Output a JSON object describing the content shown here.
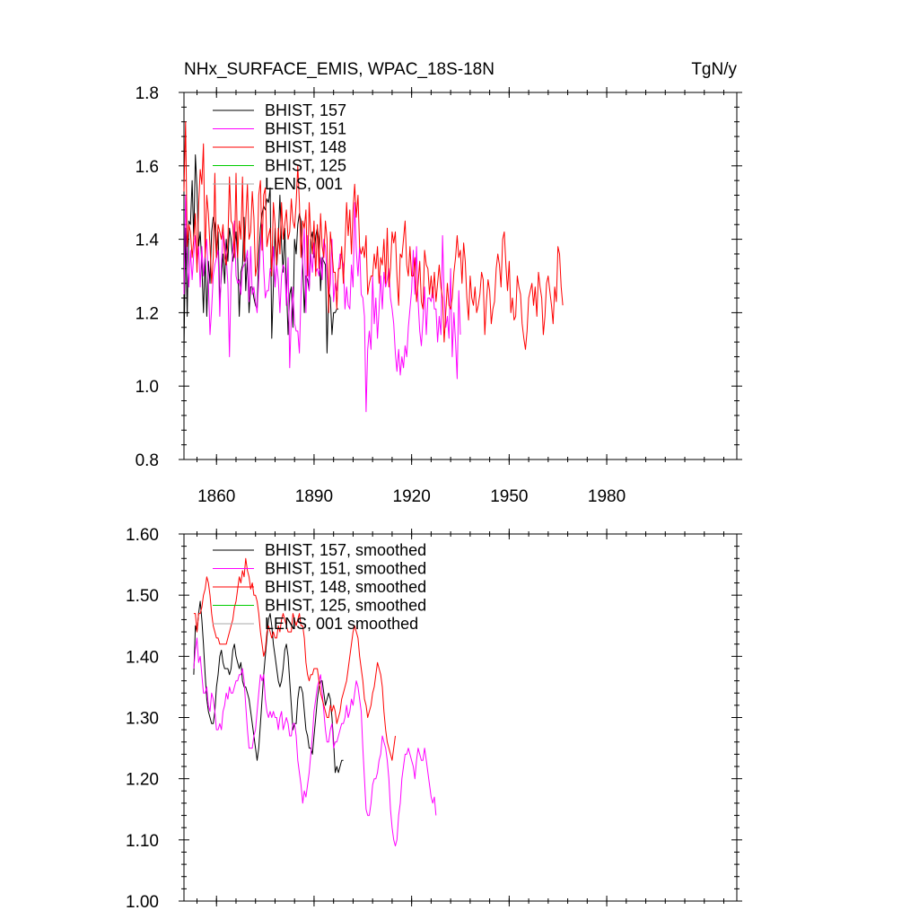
{
  "chart_data": [
    {
      "type": "line",
      "title": "NHx_SURFACE_EMIS, WPAC_18S-18N",
      "units": "TgN/y",
      "xlim": [
        1850,
        2020
      ],
      "ylim": [
        0.8,
        1.8
      ],
      "yticks": [
        "0.8",
        "1.0",
        "1.2",
        "1.4",
        "1.6",
        "1.8"
      ],
      "xticks": [
        "1860",
        "1890",
        "1920",
        "1950",
        "1980"
      ],
      "grid": false,
      "legend": "top-left",
      "series": [
        {
          "name": "BHIST, 157",
          "color": "#000000",
          "x0": 1850,
          "values": [
            1.09,
            1.43,
            1.19,
            1.45,
            1.44,
            1.56,
            1.4,
            1.63,
            1.54,
            1.38,
            1.42,
            1.33,
            1.2,
            1.35,
            1.19,
            1.34,
            1.28,
            1.42,
            1.46,
            1.44,
            1.35,
            1.42,
            1.23,
            1.3,
            1.36,
            1.28,
            1.4,
            1.34,
            1.43,
            1.4,
            1.34,
            1.37,
            1.42,
            1.35,
            1.19,
            1.31,
            1.33,
            1.46,
            1.26,
            1.35,
            1.2,
            1.27,
            1.27,
            1.24,
            1.22,
            1.21,
            1.36,
            1.43,
            1.47,
            1.49,
            1.48,
            1.51,
            1.5,
            1.54,
            1.13,
            1.27,
            1.43,
            1.32,
            1.4,
            1.52,
            1.39,
            1.31,
            1.43,
            1.28,
            1.14,
            1.25,
            1.27,
            1.16,
            1.4,
            1.36,
            1.44,
            1.47,
            1.45,
            1.33,
            1.2,
            1.3,
            1.29,
            1.26,
            1.4,
            1.42,
            1.35,
            1.41,
            1.43,
            1.4,
            1.26,
            1.35,
            1.34,
            1.33,
            1.09,
            1.26,
            1.24,
            1.14,
            1.2,
            1.2,
            1.21,
            1.21
          ]
        },
        {
          "name": "BHIST, 151",
          "color": "#ff00ff",
          "x0": 1850,
          "values": [
            1.25,
            1.52,
            1.35,
            1.27,
            1.37,
            1.29,
            1.36,
            1.41,
            1.33,
            1.38,
            1.27,
            1.38,
            1.3,
            1.36,
            1.4,
            1.28,
            1.14,
            1.21,
            1.3,
            1.33,
            1.35,
            1.37,
            1.19,
            1.33,
            1.42,
            1.39,
            1.35,
            1.28,
            1.08,
            1.3,
            1.37,
            1.45,
            1.3,
            1.28,
            1.29,
            1.25,
            1.32,
            1.33,
            1.34,
            1.37,
            1.23,
            1.38,
            1.25,
            1.27,
            1.23,
            1.2,
            1.29,
            1.38,
            1.44,
            1.32,
            1.24,
            1.26,
            1.26,
            1.32,
            1.31,
            1.38,
            1.27,
            1.33,
            1.29,
            1.2,
            1.3,
            1.33,
            1.32,
            1.22,
            1.35,
            1.05,
            1.19,
            1.27,
            1.17,
            1.15,
            1.15,
            1.09,
            1.25,
            1.35,
            1.43,
            1.2,
            1.41,
            1.26,
            1.36,
            1.31,
            1.39,
            1.31,
            1.32,
            1.3,
            1.35,
            1.29,
            1.4,
            1.38,
            1.3,
            1.24,
            1.28,
            1.4,
            1.23,
            1.28,
            1.26,
            1.31,
            1.36,
            1.35,
            1.33,
            1.21,
            1.27,
            1.22,
            1.21,
            1.33,
            1.27,
            1.5,
            1.37,
            1.3,
            1.38,
            1.25,
            1.24,
            1.19,
            0.93,
            1.1,
            1.15,
            1.1,
            1.3,
            1.17,
            1.24,
            1.13,
            1.21,
            1.3,
            1.21,
            1.31,
            1.27,
            1.29,
            1.32,
            1.24,
            1.21,
            1.17,
            1.09,
            1.04,
            1.1,
            1.03,
            1.08,
            1.05,
            1.11,
            1.08,
            1.16,
            1.21,
            1.26,
            1.37,
            1.25,
            1.38,
            1.23,
            1.15,
            1.11,
            1.18,
            1.27,
            1.14,
            1.24,
            1.24,
            1.23,
            1.27,
            1.21,
            1.21,
            1.12,
            1.19,
            1.14,
            1.41,
            1.25,
            1.16,
            1.19,
            1.13,
            1.32,
            1.08,
            1.2,
            1.12,
            1.02,
            1.26,
            1.14
          ]
        },
        {
          "name": "BHIST, 148",
          "color": "#ff0000",
          "x0": 1850,
          "values": [
            1.53,
            1.72,
            1.38,
            1.44,
            1.42,
            1.35,
            1.4,
            1.47,
            1.31,
            1.49,
            1.59,
            1.55,
            1.66,
            1.35,
            1.52,
            1.47,
            1.38,
            1.28,
            1.35,
            1.58,
            1.35,
            1.44,
            1.42,
            1.4,
            1.44,
            1.35,
            1.33,
            1.39,
            1.57,
            1.45,
            1.44,
            1.35,
            1.58,
            1.35,
            1.45,
            1.4,
            1.57,
            1.34,
            1.45,
            1.55,
            1.4,
            1.42,
            1.53,
            1.46,
            1.3,
            1.33,
            1.52,
            1.56,
            1.37,
            1.52,
            1.54,
            1.38,
            1.41,
            1.43,
            1.3,
            1.5,
            1.44,
            1.33,
            1.43,
            1.36,
            1.5,
            1.4,
            1.44,
            1.48,
            1.4,
            1.42,
            1.51,
            1.45,
            1.43,
            1.5,
            1.6,
            1.5,
            1.35,
            1.45,
            1.43,
            1.48,
            1.3,
            1.5,
            1.41,
            1.36,
            1.45,
            1.3,
            1.44,
            1.32,
            1.47,
            1.38,
            1.35,
            1.45,
            1.4,
            1.2,
            1.42,
            1.37,
            1.31,
            1.31,
            1.21,
            1.32,
            1.32,
            1.38,
            1.28,
            1.38,
            1.5,
            1.41,
            1.48,
            1.36,
            1.48,
            1.55,
            1.46,
            1.52,
            1.38,
            1.36,
            1.38,
            1.35,
            1.41,
            1.25,
            1.28,
            1.3,
            1.3,
            1.36,
            1.32,
            1.38,
            1.28,
            1.35,
            1.33,
            1.4,
            1.28,
            1.43,
            1.27,
            1.32,
            1.42,
            1.39,
            1.42,
            1.3,
            1.22,
            1.36,
            1.35,
            1.4,
            1.45,
            1.33,
            1.3,
            1.38,
            1.3,
            1.3,
            1.35,
            1.23,
            1.28,
            1.34,
            1.23,
            1.21,
            1.37,
            1.33,
            1.32,
            1.25,
            1.3,
            1.24,
            1.31,
            1.23,
            1.28,
            1.33,
            1.27,
            1.24,
            1.12,
            1.2,
            1.28,
            1.22,
            1.21,
            1.24,
            1.31,
            1.35,
            1.41,
            1.35,
            1.37,
            1.28,
            1.39,
            1.34,
            1.24,
            1.18,
            1.3,
            1.24,
            1.22,
            1.27,
            1.2,
            1.22,
            1.25,
            1.31,
            1.29,
            1.14,
            1.23,
            1.29,
            1.26,
            1.17,
            1.21,
            1.23,
            1.32,
            1.36,
            1.33,
            1.27,
            1.4,
            1.42,
            1.33,
            1.26,
            1.34,
            1.2,
            1.24,
            1.18,
            1.19,
            1.3,
            1.27,
            1.25,
            1.17,
            1.13,
            1.1,
            1.15,
            1.24,
            1.26,
            1.28,
            1.22,
            1.27,
            1.19,
            1.31,
            1.27,
            1.24,
            1.14,
            1.19,
            1.28,
            1.3,
            1.26,
            1.22,
            1.17,
            1.27,
            1.23,
            1.38,
            1.36,
            1.27,
            1.22
          ]
        },
        {
          "name": "BHIST, 125",
          "color": "#00cc00",
          "x0": 1850,
          "values": []
        },
        {
          "name": "LENS, 001",
          "color": "#aaaaaa",
          "x0": 1850,
          "values": []
        }
      ]
    },
    {
      "type": "line",
      "xlim": [
        1850,
        2020
      ],
      "ylim": [
        1.0,
        1.6
      ],
      "yticks": [
        "1.00",
        "1.10",
        "1.20",
        "1.30",
        "1.40",
        "1.50",
        "1.60"
      ],
      "xticks": [
        "1860",
        "1890",
        "1920",
        "1950",
        "1980"
      ],
      "grid": false,
      "legend": "top-left",
      "series": [
        {
          "name": "BHIST, 157, smoothed",
          "color": "#000000",
          "x0": 1853,
          "values": [
            1.37,
            1.45,
            1.44,
            1.47,
            1.49,
            1.46,
            1.42,
            1.37,
            1.33,
            1.31,
            1.3,
            1.29,
            1.29,
            1.31,
            1.35,
            1.37,
            1.4,
            1.41,
            1.39,
            1.38,
            1.38,
            1.38,
            1.37,
            1.38,
            1.41,
            1.42,
            1.4,
            1.39,
            1.38,
            1.39,
            1.36,
            1.35,
            1.35,
            1.34,
            1.33,
            1.31,
            1.29,
            1.27,
            1.25,
            1.23,
            1.25,
            1.29,
            1.33,
            1.37,
            1.4,
            1.43,
            1.46,
            1.47,
            1.45,
            1.42,
            1.4,
            1.38,
            1.36,
            1.35,
            1.36,
            1.38,
            1.41,
            1.42,
            1.4,
            1.36,
            1.32,
            1.28,
            1.29,
            1.29,
            1.33,
            1.35,
            1.35,
            1.34,
            1.31,
            1.28,
            1.27,
            1.25,
            1.25,
            1.24,
            1.27,
            1.3,
            1.33,
            1.35,
            1.36,
            1.36,
            1.34,
            1.32,
            1.33,
            1.34,
            1.33,
            1.3,
            1.26,
            1.21,
            1.22,
            1.21,
            1.22,
            1.23,
            1.23
          ]
        },
        {
          "name": "BHIST, 151, smoothed",
          "color": "#ff00ff",
          "x0": 1853,
          "values": [
            1.38,
            1.41,
            1.43,
            1.39,
            1.4,
            1.37,
            1.34,
            1.34,
            1.35,
            1.32,
            1.31,
            1.34,
            1.33,
            1.31,
            1.28,
            1.28,
            1.29,
            1.28,
            1.31,
            1.32,
            1.34,
            1.33,
            1.35,
            1.34,
            1.34,
            1.35,
            1.36,
            1.36,
            1.37,
            1.37,
            1.38,
            1.36,
            1.32,
            1.28,
            1.25,
            1.25,
            1.25,
            1.27,
            1.28,
            1.31,
            1.34,
            1.37,
            1.36,
            1.37,
            1.33,
            1.31,
            1.3,
            1.31,
            1.3,
            1.31,
            1.3,
            1.3,
            1.28,
            1.3,
            1.31,
            1.28,
            1.29,
            1.3,
            1.29,
            1.27,
            1.27,
            1.29,
            1.29,
            1.27,
            1.23,
            1.21,
            1.19,
            1.16,
            1.18,
            1.17,
            1.19,
            1.21,
            1.24,
            1.27,
            1.31,
            1.33,
            1.35,
            1.36,
            1.37,
            1.34,
            1.31,
            1.28,
            1.26,
            1.26,
            1.28,
            1.29,
            1.25,
            1.26,
            1.26,
            1.27,
            1.28,
            1.29,
            1.29,
            1.3,
            1.32,
            1.3,
            1.31,
            1.33,
            1.32,
            1.34,
            1.36,
            1.35,
            1.33,
            1.31,
            1.25,
            1.2,
            1.15,
            1.14,
            1.14,
            1.16,
            1.19,
            1.2,
            1.2,
            1.21,
            1.23,
            1.24,
            1.27,
            1.26,
            1.25,
            1.23,
            1.2,
            1.15,
            1.12,
            1.1,
            1.09,
            1.1,
            1.14,
            1.16,
            1.2,
            1.22,
            1.24,
            1.24,
            1.25,
            1.24,
            1.23,
            1.22,
            1.2,
            1.23,
            1.25,
            1.24,
            1.23,
            1.23,
            1.25,
            1.23,
            1.21,
            1.19,
            1.17,
            1.16,
            1.17,
            1.14
          ]
        },
        {
          "name": "BHIST, 148, smoothed",
          "color": "#ff0000",
          "x0": 1853,
          "values": [
            1.47,
            1.47,
            1.44,
            1.47,
            1.47,
            1.48,
            1.5,
            1.51,
            1.53,
            1.52,
            1.5,
            1.47,
            1.45,
            1.44,
            1.43,
            1.43,
            1.42,
            1.42,
            1.42,
            1.42,
            1.42,
            1.43,
            1.44,
            1.45,
            1.46,
            1.48,
            1.49,
            1.51,
            1.53,
            1.52,
            1.54,
            1.53,
            1.56,
            1.54,
            1.53,
            1.51,
            1.52,
            1.5,
            1.5,
            1.49,
            1.47,
            1.44,
            1.42,
            1.4,
            1.41,
            1.44,
            1.45,
            1.44,
            1.43,
            1.44,
            1.43,
            1.43,
            1.45,
            1.44,
            1.46,
            1.47,
            1.46,
            1.45,
            1.44,
            1.44,
            1.44,
            1.47,
            1.46,
            1.45,
            1.46,
            1.47,
            1.45,
            1.45,
            1.43,
            1.39,
            1.37,
            1.36,
            1.37,
            1.37,
            1.38,
            1.38,
            1.38,
            1.36,
            1.34,
            1.33,
            1.32,
            1.31,
            1.3,
            1.3,
            1.32,
            1.31,
            1.32,
            1.31,
            1.29,
            1.3,
            1.31,
            1.33,
            1.34,
            1.35,
            1.36,
            1.38,
            1.4,
            1.42,
            1.44,
            1.45,
            1.44,
            1.43,
            1.4,
            1.38,
            1.36,
            1.33,
            1.32,
            1.3,
            1.31,
            1.32,
            1.34,
            1.35,
            1.37,
            1.39,
            1.38,
            1.37,
            1.35,
            1.31,
            1.28,
            1.26,
            1.25,
            1.24,
            1.23,
            1.25,
            1.27
          ]
        },
        {
          "name": "BHIST, 125, smoothed",
          "color": "#00cc00",
          "x0": 1853,
          "values": []
        },
        {
          "name": "LENS, 001 smoothed",
          "color": "#aaaaaa",
          "x0": 1853,
          "values": []
        }
      ]
    }
  ]
}
